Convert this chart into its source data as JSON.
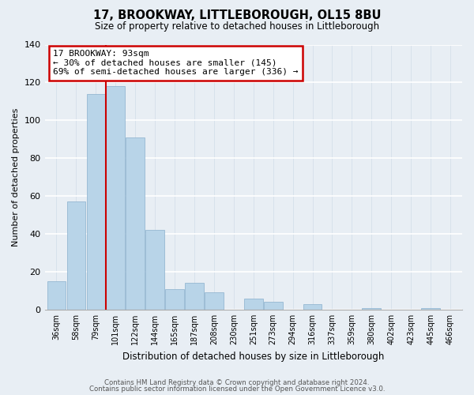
{
  "title": "17, BROOKWAY, LITTLEBOROUGH, OL15 8BU",
  "subtitle": "Size of property relative to detached houses in Littleborough",
  "xlabel": "Distribution of detached houses by size in Littleborough",
  "ylabel": "Number of detached properties",
  "bar_labels": [
    "36sqm",
    "58sqm",
    "79sqm",
    "101sqm",
    "122sqm",
    "144sqm",
    "165sqm",
    "187sqm",
    "208sqm",
    "230sqm",
    "251sqm",
    "273sqm",
    "294sqm",
    "316sqm",
    "337sqm",
    "359sqm",
    "380sqm",
    "402sqm",
    "423sqm",
    "445sqm",
    "466sqm"
  ],
  "bar_values": [
    15,
    57,
    114,
    118,
    91,
    42,
    11,
    14,
    9,
    0,
    6,
    4,
    0,
    3,
    0,
    0,
    1,
    0,
    0,
    1,
    0
  ],
  "bar_color": "#b8d4e8",
  "bar_edge_color": "#8ab0cc",
  "vline_color": "#cc0000",
  "annotation_title": "17 BROOKWAY: 93sqm",
  "annotation_line1": "← 30% of detached houses are smaller (145)",
  "annotation_line2": "69% of semi-detached houses are larger (336) →",
  "annotation_box_color": "#ffffff",
  "annotation_box_edge": "#cc0000",
  "ylim": [
    0,
    140
  ],
  "yticks": [
    0,
    20,
    40,
    60,
    80,
    100,
    120,
    140
  ],
  "footer1": "Contains HM Land Registry data © Crown copyright and database right 2024.",
  "footer2": "Contains public sector information licensed under the Open Government Licence v3.0.",
  "bg_color": "#e8eef4"
}
